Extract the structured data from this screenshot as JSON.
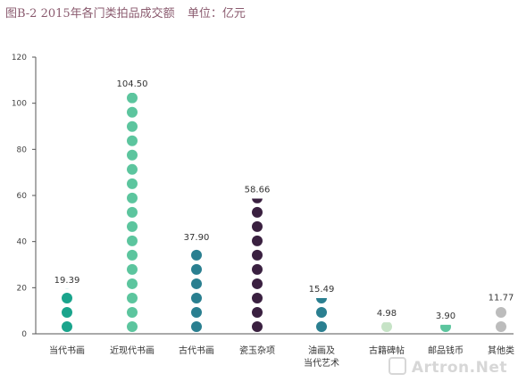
{
  "title": {
    "text": "图B-2 2015年各门类拍品成交额",
    "unit": "单位：亿元"
  },
  "watermark": "Artron.Net",
  "chart_data": {
    "type": "bar",
    "categories": [
      "当代书画",
      "近现代书画",
      "古代书画",
      "瓷玉杂项",
      "油画及当代艺术",
      "古籍碑帖",
      "邮品钱币",
      "其他类"
    ],
    "category_lines": [
      [
        "当代书画"
      ],
      [
        "近现代书画"
      ],
      [
        "古代书画"
      ],
      [
        "瓷玉杂项"
      ],
      [
        "油画及",
        "当代艺术"
      ],
      [
        "古籍碑帖"
      ],
      [
        "邮品钱币"
      ],
      [
        "其他类"
      ]
    ],
    "values": [
      19.39,
      104.5,
      37.9,
      58.66,
      15.49,
      4.98,
      3.9,
      11.77
    ],
    "value_labels": [
      "19.39",
      "104.50",
      "37.90",
      "58.66",
      "15.49",
      "4.98",
      "3.90",
      "11.77"
    ],
    "colors": [
      "#1aa48c",
      "#5cc59e",
      "#2a7f90",
      "#3a2040",
      "#2a7f90",
      "#c6e3c6",
      "#5cc59e",
      "#bcbcbc"
    ],
    "ylim": [
      0,
      120
    ],
    "yticks": [
      0,
      20,
      40,
      60,
      80,
      100,
      120
    ],
    "dot_unit": 6.2
  }
}
